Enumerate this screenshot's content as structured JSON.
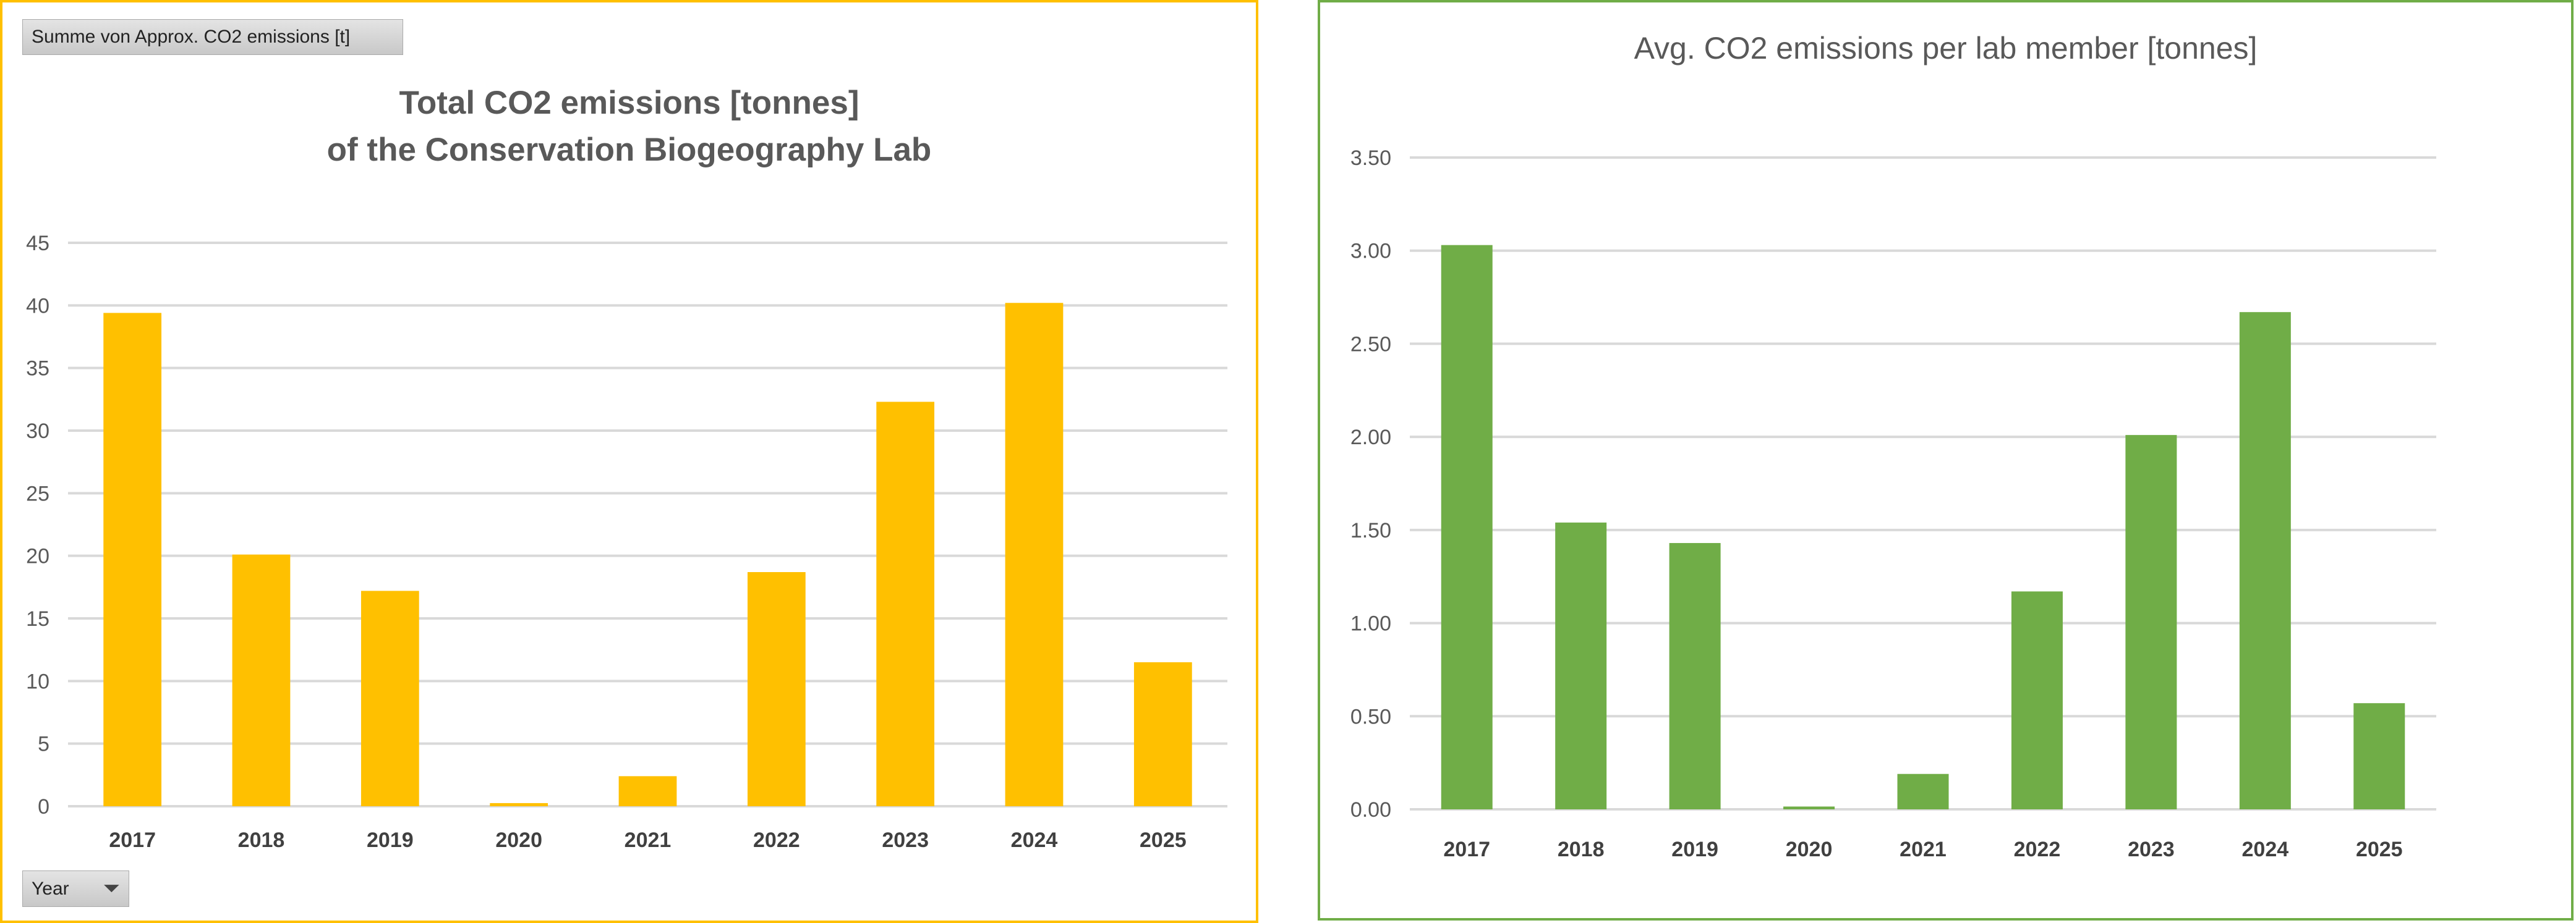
{
  "pivot": {
    "field_button": "Summe von Approx. CO2 emissions [t]",
    "year_button": "Year"
  },
  "colors": {
    "total": "#FFC000",
    "avg": "#70AD47"
  },
  "chart_data": [
    {
      "type": "bar",
      "title": "Total CO2 emissions [tonnes]",
      "subtitle": "of the Conservation Biogeography Lab",
      "categories": [
        "2017",
        "2018",
        "2019",
        "2020",
        "2021",
        "2022",
        "2023",
        "2024",
        "2025"
      ],
      "values": [
        39.4,
        20.1,
        17.2,
        0.25,
        2.4,
        18.7,
        32.3,
        40.2,
        11.5
      ],
      "ylim": [
        0,
        45
      ],
      "yticks": [
        "0",
        "5",
        "10",
        "15",
        "20",
        "25",
        "30",
        "35",
        "40",
        "45"
      ],
      "grid": true,
      "legend": "none",
      "xlabel": "",
      "ylabel": ""
    },
    {
      "type": "bar",
      "title": "Avg. CO2 emissions per lab member [tonnes]",
      "categories": [
        "2017",
        "2018",
        "2019",
        "2020",
        "2021",
        "2022",
        "2023",
        "2024",
        "2025"
      ],
      "values": [
        3.03,
        1.54,
        1.43,
        0.015,
        0.19,
        1.17,
        2.01,
        2.67,
        0.57
      ],
      "ylim": [
        0,
        3.5
      ],
      "yticks": [
        "0.00",
        "0.50",
        "1.00",
        "1.50",
        "2.00",
        "2.50",
        "3.00",
        "3.50"
      ],
      "grid": true,
      "legend": "none",
      "xlabel": "",
      "ylabel": ""
    }
  ]
}
